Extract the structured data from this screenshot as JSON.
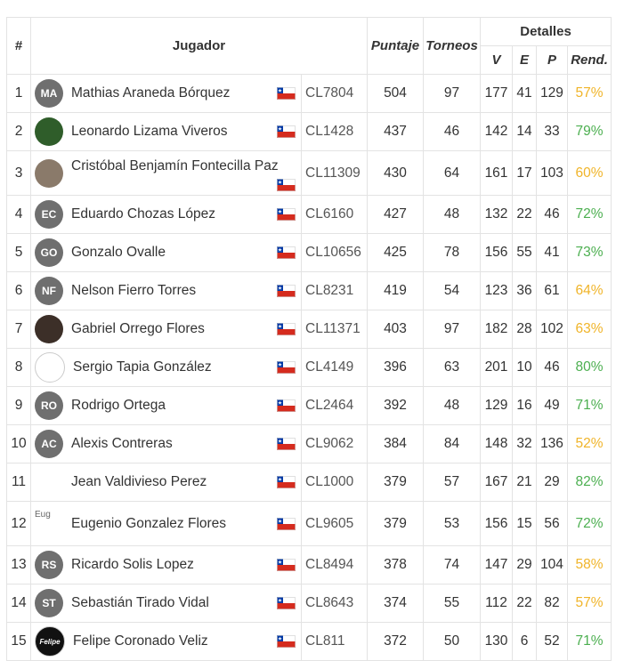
{
  "header": {
    "rank": "#",
    "player": "Jugador",
    "score": "Puntaje",
    "tournaments": "Torneos",
    "details": "Detalles",
    "wins": "V",
    "draws": "E",
    "losses": "P",
    "performance": "Rend."
  },
  "rows": [
    {
      "rank": "1",
      "avatar": "MA",
      "name": "Mathias Araneda Bórquez",
      "code": "CL7804",
      "score": "504",
      "tournaments": "97",
      "v": "177",
      "e": "41",
      "p": "129",
      "rend": "57%"
    },
    {
      "rank": "2",
      "avatar": "",
      "name": "Leonardo Lizama Viveros",
      "code": "CL1428",
      "score": "437",
      "tournaments": "46",
      "v": "142",
      "e": "14",
      "p": "33",
      "rend": "79%"
    },
    {
      "rank": "3",
      "avatar": "",
      "name": "Cristóbal Benjamín Fontecilla Paz",
      "code": "CL11309",
      "score": "430",
      "tournaments": "64",
      "v": "161",
      "e": "17",
      "p": "103",
      "rend": "60%"
    },
    {
      "rank": "4",
      "avatar": "EC",
      "name": "Eduardo Chozas López",
      "code": "CL6160",
      "score": "427",
      "tournaments": "48",
      "v": "132",
      "e": "22",
      "p": "46",
      "rend": "72%"
    },
    {
      "rank": "5",
      "avatar": "GO",
      "name": "Gonzalo Ovalle",
      "code": "CL10656",
      "score": "425",
      "tournaments": "78",
      "v": "156",
      "e": "55",
      "p": "41",
      "rend": "73%"
    },
    {
      "rank": "6",
      "avatar": "NF",
      "name": "Nelson Fierro Torres",
      "code": "CL8231",
      "score": "419",
      "tournaments": "54",
      "v": "123",
      "e": "36",
      "p": "61",
      "rend": "64%"
    },
    {
      "rank": "7",
      "avatar": "",
      "name": "Gabriel Orrego Flores",
      "code": "CL11371",
      "score": "403",
      "tournaments": "97",
      "v": "182",
      "e": "28",
      "p": "102",
      "rend": "63%"
    },
    {
      "rank": "8",
      "avatar": "",
      "name": "Sergio Tapia González",
      "code": "CL4149",
      "score": "396",
      "tournaments": "63",
      "v": "201",
      "e": "10",
      "p": "46",
      "rend": "80%"
    },
    {
      "rank": "9",
      "avatar": "RO",
      "name": "Rodrigo Ortega",
      "code": "CL2464",
      "score": "392",
      "tournaments": "48",
      "v": "129",
      "e": "16",
      "p": "49",
      "rend": "71%"
    },
    {
      "rank": "10",
      "avatar": "AC",
      "name": "Alexis Contreras",
      "code": "CL9062",
      "score": "384",
      "tournaments": "84",
      "v": "148",
      "e": "32",
      "p": "136",
      "rend": "52%"
    },
    {
      "rank": "11",
      "avatar": "",
      "name": "Jean Valdivieso Perez",
      "code": "CL1000",
      "score": "379",
      "tournaments": "57",
      "v": "167",
      "e": "21",
      "p": "29",
      "rend": "82%"
    },
    {
      "rank": "12",
      "avatar": "Eug",
      "name": "Eugenio Gonzalez Flores",
      "code": "CL9605",
      "score": "379",
      "tournaments": "53",
      "v": "156",
      "e": "15",
      "p": "56",
      "rend": "72%"
    },
    {
      "rank": "13",
      "avatar": "RS",
      "name": "Ricardo Solis Lopez",
      "code": "CL8494",
      "score": "378",
      "tournaments": "74",
      "v": "147",
      "e": "29",
      "p": "104",
      "rend": "58%"
    },
    {
      "rank": "14",
      "avatar": "ST",
      "name": "Sebastián Tirado Vidal",
      "code": "CL8643",
      "score": "374",
      "tournaments": "55",
      "v": "112",
      "e": "22",
      "p": "82",
      "rend": "57%"
    },
    {
      "rank": "15",
      "avatar": "Felipe",
      "name": "Felipe Coronado Veliz",
      "code": "CL811",
      "score": "372",
      "tournaments": "50",
      "v": "130",
      "e": "6",
      "p": "52",
      "rend": "71%"
    }
  ],
  "colors": {
    "good": "#4caf50",
    "mid": "#f0b429",
    "flag_red": "#d52b1e",
    "flag_blue": "#0039a6"
  }
}
